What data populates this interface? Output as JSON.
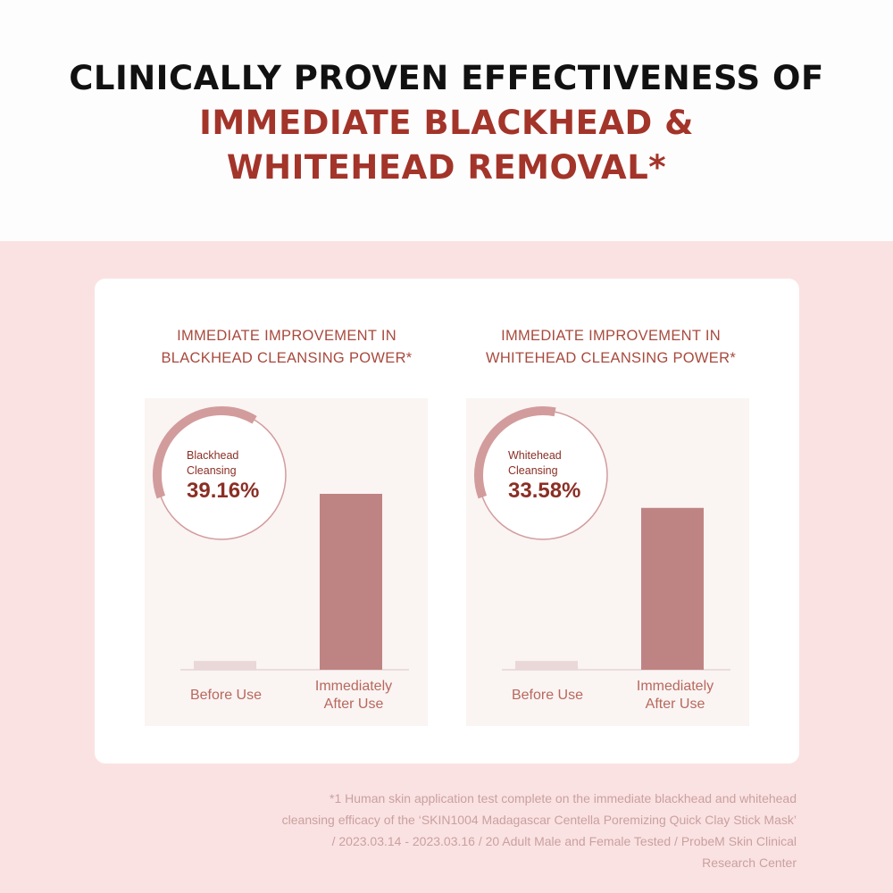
{
  "header": {
    "title_line1": "CLINICALLY PROVEN EFFECTIVENESS OF",
    "title_line2": "IMMEDIATE BLACKHEAD &",
    "title_line3": "WHITEHEAD REMOVAL*"
  },
  "colors": {
    "accent": "#a3342a",
    "bar_after": "#be8483",
    "bar_before": "#ead7d7",
    "ring": "#d29c9c",
    "pink_background": "#fbe2e2"
  },
  "chart_data": [
    {
      "type": "bar",
      "title_line1": "IMMEDIATE IMPROVEMENT IN",
      "title_line2": "BLACKHEAD CLEANSING POWER*",
      "categories": [
        "Before Use",
        "Immediately After Use"
      ],
      "category_lines": [
        [
          "Before Use"
        ],
        [
          "Immediately",
          "After Use"
        ]
      ],
      "values": [
        5,
        100
      ],
      "callout": {
        "label_line1": "Blackhead",
        "label_line2": "Cleansing",
        "value": "39.16%",
        "percent": 39.16
      }
    },
    {
      "type": "bar",
      "title_line1": "IMMEDIATE IMPROVEMENT IN",
      "title_line2": "WHITEHEAD CLEANSING POWER*",
      "categories": [
        "Before Use",
        "Immediately After Use"
      ],
      "category_lines": [
        [
          "Before Use"
        ],
        [
          "Immediately",
          "After Use"
        ]
      ],
      "values": [
        5,
        92
      ],
      "callout": {
        "label_line1": "Whitehead",
        "label_line2": "Cleansing",
        "value": "33.58%",
        "percent": 33.58
      }
    }
  ],
  "footnote": {
    "line1": "*1 Human skin application test complete on the immediate blackhead and whitehead",
    "line2": "cleansing efficacy of the ‘SKIN1004 Madagascar Centella Poremizing Quick Clay Stick Mask’",
    "line3": "/ 2023.03.14 - 2023.03.16 / 20 Adult Male and Female Tested / ProbeM Skin Clinical",
    "line4": "Research Center"
  }
}
